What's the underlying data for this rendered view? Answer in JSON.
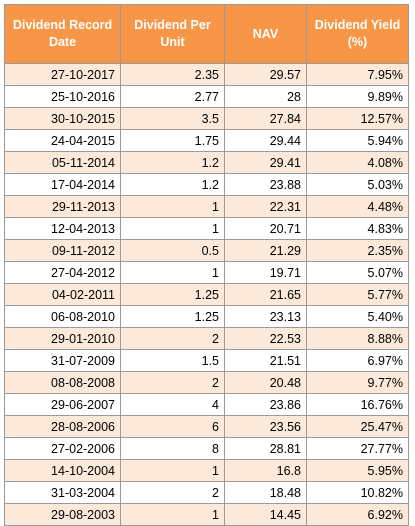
{
  "table": {
    "headers": [
      "Dividend Record Date",
      "Dividend Per Unit",
      "NAV",
      "Dividend Yield (%)"
    ],
    "rows": [
      [
        "27-10-2017",
        "2.35",
        "29.57",
        "7.95%"
      ],
      [
        "25-10-2016",
        "2.77",
        "28",
        "9.89%"
      ],
      [
        "30-10-2015",
        "3.5",
        "27.84",
        "12.57%"
      ],
      [
        "24-04-2015",
        "1.75",
        "29.44",
        "5.94%"
      ],
      [
        "05-11-2014",
        "1.2",
        "29.41",
        "4.08%"
      ],
      [
        "17-04-2014",
        "1.2",
        "23.88",
        "5.03%"
      ],
      [
        "29-11-2013",
        "1",
        "22.31",
        "4.48%"
      ],
      [
        "12-04-2013",
        "1",
        "20.71",
        "4.83%"
      ],
      [
        "09-11-2012",
        "0.5",
        "21.29",
        "2.35%"
      ],
      [
        "27-04-2012",
        "1",
        "19.71",
        "5.07%"
      ],
      [
        "04-02-2011",
        "1.25",
        "21.65",
        "5.77%"
      ],
      [
        "06-08-2010",
        "1.25",
        "23.13",
        "5.40%"
      ],
      [
        "29-01-2010",
        "2",
        "22.53",
        "8.88%"
      ],
      [
        "31-07-2009",
        "1.5",
        "21.51",
        "6.97%"
      ],
      [
        "08-08-2008",
        "2",
        "20.48",
        "9.77%"
      ],
      [
        "29-06-2007",
        "4",
        "23.86",
        "16.76%"
      ],
      [
        "28-08-2006",
        "6",
        "23.56",
        "25.47%"
      ],
      [
        "27-02-2006",
        "8",
        "28.81",
        "27.77%"
      ],
      [
        "14-10-2004",
        "1",
        "16.8",
        "5.95%"
      ],
      [
        "31-03-2004",
        "2",
        "18.48",
        "10.82%"
      ],
      [
        "29-08-2003",
        "1",
        "14.45",
        "6.92%"
      ]
    ]
  },
  "colors": {
    "header_background": "#f79646",
    "header_text": "#ffffff",
    "band_row": "#fde9d9",
    "plain_row": "#ffffff",
    "grid": "#9a9a9a"
  }
}
